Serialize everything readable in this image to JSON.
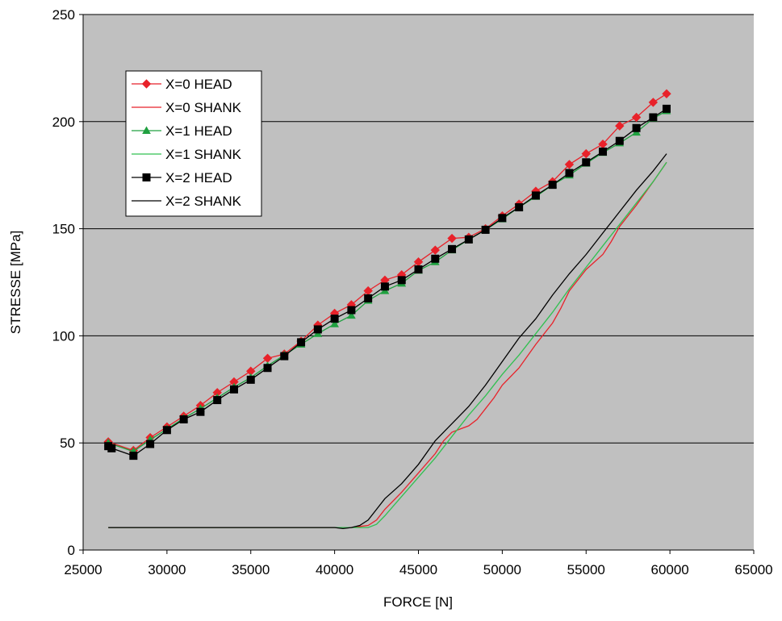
{
  "chart_data": {
    "type": "line",
    "title": "",
    "xlabel": "FORCE [N]",
    "ylabel": "STRESSE [MPa]",
    "xlim": [
      25000,
      65000
    ],
    "ylim": [
      0,
      250
    ],
    "xticks": [
      25000,
      30000,
      35000,
      40000,
      45000,
      50000,
      55000,
      60000,
      65000
    ],
    "yticks": [
      0,
      50,
      100,
      150,
      200,
      250
    ],
    "grid": "horizontal",
    "legend_position": "upper-left",
    "plot_background": "#c0c0c0",
    "series": [
      {
        "name": "X=0 HEAD",
        "color": "#e8222a",
        "marker": "diamond",
        "x": [
          26500,
          28000,
          29000,
          30000,
          31000,
          32000,
          33000,
          34000,
          35000,
          36000,
          37000,
          38000,
          39000,
          40000,
          41000,
          42000,
          43000,
          44000,
          45000,
          46000,
          47000,
          48000,
          49000,
          50000,
          51000,
          52000,
          53000,
          54000,
          55000,
          56000,
          57000,
          58000,
          59000,
          59800
        ],
        "y": [
          50.5,
          46.5,
          52.5,
          57.5,
          62.5,
          67.5,
          73.5,
          78.5,
          83.5,
          89.5,
          91.5,
          97.5,
          105,
          110.5,
          114.5,
          121,
          126,
          128.5,
          134.5,
          140,
          145.5,
          146,
          150,
          156,
          161.5,
          167.5,
          172,
          180,
          185,
          189.5,
          198,
          202,
          209,
          213
        ]
      },
      {
        "name": "X=0 SHANK",
        "color": "#e8222a",
        "marker": "none",
        "x": [
          26500,
          30000,
          35000,
          40000,
          41000,
          41500,
          42000,
          42500,
          43000,
          44000,
          45000,
          46000,
          46500,
          47000,
          47500,
          48000,
          48500,
          49000,
          49500,
          50000,
          51000,
          52000,
          53000,
          53500,
          54000,
          55000,
          56000,
          56500,
          57000,
          58000,
          59000,
          59800
        ],
        "y": [
          10.5,
          10.5,
          10.5,
          10.5,
          10.5,
          11,
          11.5,
          14,
          19,
          27,
          36,
          45,
          51,
          55,
          56.5,
          58,
          61,
          66,
          71,
          77,
          85,
          96,
          106,
          113,
          121,
          131,
          138,
          144,
          151,
          161,
          172,
          181
        ]
      },
      {
        "name": "X=1 HEAD",
        "color": "#20a040",
        "marker": "triangle",
        "x": [
          26500,
          28000,
          29000,
          30000,
          31000,
          32000,
          33000,
          34000,
          35000,
          36000,
          37000,
          38000,
          39000,
          40000,
          41000,
          42000,
          43000,
          44000,
          45000,
          46000,
          47000,
          48000,
          49000,
          50000,
          51000,
          52000,
          53000,
          54000,
          55000,
          56000,
          57000,
          58000,
          59000,
          59800
        ],
        "y": [
          50,
          46,
          51.5,
          56.5,
          61.5,
          66,
          71,
          76,
          80.5,
          86,
          91,
          96,
          101,
          105.5,
          109.5,
          116.5,
          121,
          124.5,
          130.5,
          134.5,
          140,
          145,
          149.5,
          154.5,
          160,
          165,
          170.5,
          175,
          180.5,
          185.5,
          190,
          195,
          201.5,
          205
        ]
      },
      {
        "name": "X=1 SHANK",
        "color": "#30c050",
        "marker": "none",
        "x": [
          26500,
          30000,
          35000,
          40000,
          41000,
          42000,
          42500,
          43000,
          44000,
          45000,
          46000,
          47000,
          48000,
          49000,
          50000,
          51000,
          52000,
          53000,
          54000,
          55000,
          56000,
          57000,
          58000,
          59000,
          59800
        ],
        "y": [
          10.5,
          10.5,
          10.5,
          10.5,
          10.5,
          10.5,
          12,
          16,
          25,
          34,
          43,
          53,
          63,
          72,
          82,
          91,
          101,
          111,
          122,
          132,
          142,
          152,
          162,
          172,
          181
        ]
      },
      {
        "name": "X=2 HEAD",
        "color": "#000000",
        "marker": "square",
        "x": [
          26500,
          26700,
          28000,
          29000,
          30000,
          31000,
          32000,
          33000,
          34000,
          35000,
          36000,
          37000,
          38000,
          39000,
          40000,
          41000,
          42000,
          43000,
          44000,
          45000,
          46000,
          47000,
          48000,
          49000,
          50000,
          51000,
          52000,
          53000,
          54000,
          55000,
          56000,
          57000,
          58000,
          59000,
          59800
        ],
        "y": [
          48.5,
          47.5,
          44,
          49.5,
          56,
          61,
          64.5,
          70,
          75,
          79.5,
          85,
          90.5,
          97,
          103,
          108,
          112,
          117.5,
          123,
          126,
          131,
          136,
          140.5,
          145,
          149.5,
          155,
          160,
          165.5,
          170.5,
          176,
          181,
          186,
          191,
          197,
          202,
          206
        ]
      },
      {
        "name": "X=2 SHANK",
        "color": "#000000",
        "marker": "none",
        "x": [
          26500,
          30000,
          35000,
          40000,
          40500,
          41000,
          41500,
          42000,
          42500,
          43000,
          44000,
          45000,
          46000,
          47000,
          48000,
          49000,
          50000,
          51000,
          52000,
          53000,
          54000,
          55000,
          56000,
          57000,
          58000,
          59000,
          59800
        ],
        "y": [
          10.5,
          10.5,
          10.5,
          10.5,
          10,
          10.5,
          11.5,
          14,
          19,
          24,
          31,
          40,
          51,
          59,
          67,
          77,
          88,
          99,
          108,
          119,
          129,
          138,
          148,
          158,
          168,
          177,
          185
        ]
      }
    ]
  }
}
